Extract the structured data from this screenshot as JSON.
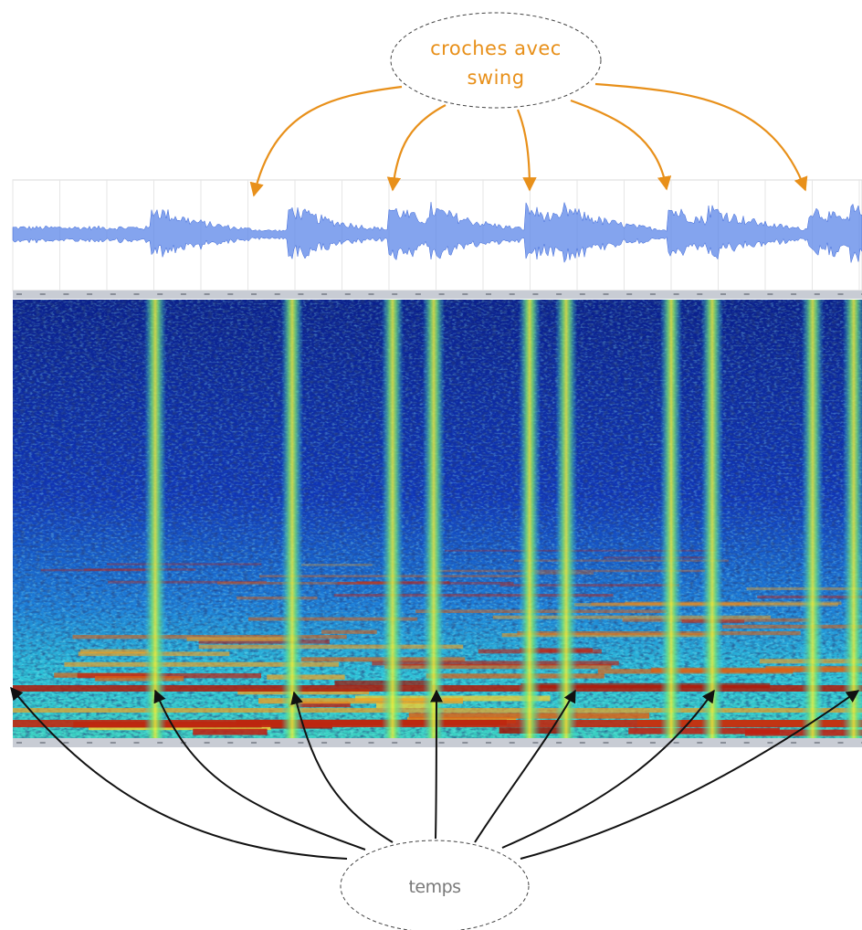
{
  "annotations": {
    "top": {
      "label_lines": [
        "croches avec",
        "swing"
      ]
    },
    "bottom": {
      "label": "temps"
    }
  }
}
